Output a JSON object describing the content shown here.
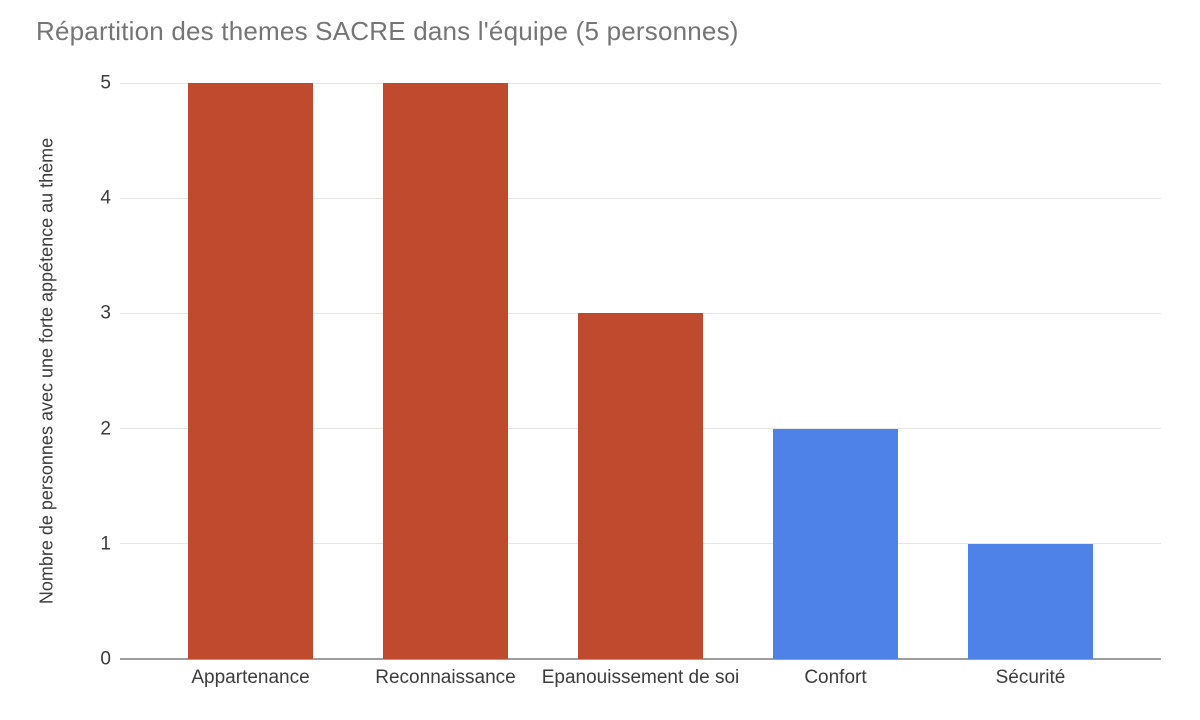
{
  "chart_data": {
    "type": "bar",
    "title": "Répartition des themes SACRE dans l'équipe (5 personnes)",
    "categories": [
      "Appartenance",
      "Reconnaissance",
      "Epanouissement de soi",
      "Confort",
      "Sécurité"
    ],
    "values": [
      5,
      5,
      3,
      2,
      1
    ],
    "bar_colors": [
      "#c04a2e",
      "#c04a2e",
      "#c04a2e",
      "#4f82e8",
      "#4f82e8"
    ],
    "xlabel": "",
    "ylabel": "Nombre de personnes avec une forte appétence au thème",
    "ylim": [
      0,
      5
    ],
    "yticks": [
      0,
      1,
      2,
      3,
      4,
      5
    ],
    "grid": "horizontal",
    "legend": "none",
    "colors": {
      "title_text": "#757575",
      "axis_text": "#3c3c3c",
      "gridline": "#e6e6e6",
      "axis_line": "#9e9e9e",
      "background": "#ffffff"
    }
  }
}
